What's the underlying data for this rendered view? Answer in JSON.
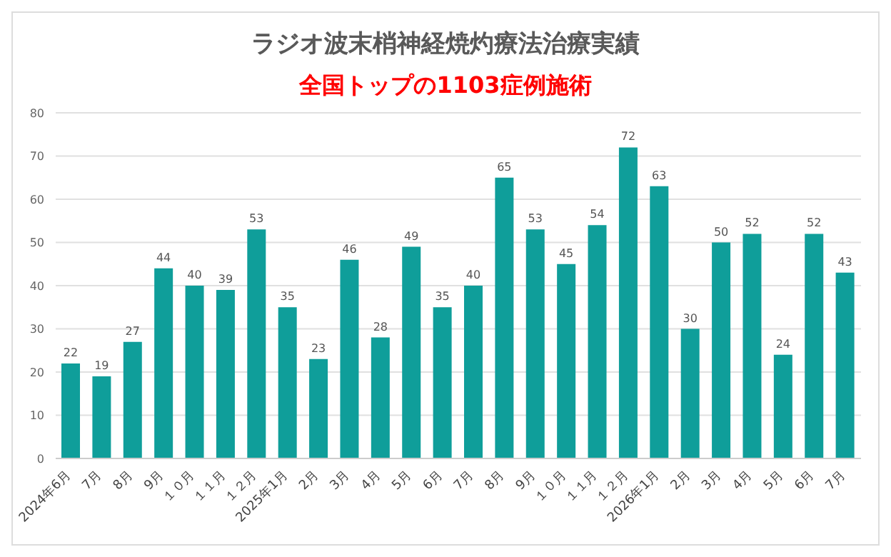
{
  "chart_data": {
    "type": "bar",
    "title": "ラジオ波末梢神経焼灼療法治療実績",
    "subtitle": "全国トップの1103症例施術",
    "categories": [
      "2024年6月",
      "7月",
      "8月",
      "9月",
      "１０月",
      "１１月",
      "１２月",
      "2025年1月",
      "2月",
      "3月",
      "4月",
      "5月",
      "6月",
      "7月",
      "8月",
      "9月",
      "１０月",
      "１１月",
      "１２月",
      "2026年1月",
      "2月",
      "3月",
      "4月",
      "5月",
      "6月",
      "7月"
    ],
    "values": [
      22,
      19,
      27,
      44,
      40,
      39,
      53,
      35,
      23,
      46,
      28,
      49,
      35,
      40,
      65,
      53,
      45,
      54,
      72,
      63,
      30,
      50,
      52,
      24,
      52,
      43
    ],
    "color": "#0f9e9a",
    "ylim": [
      0,
      80
    ],
    "yticks": [
      0,
      10,
      20,
      30,
      40,
      50,
      60,
      70,
      80
    ],
    "grid": "y",
    "data_labels": true
  }
}
